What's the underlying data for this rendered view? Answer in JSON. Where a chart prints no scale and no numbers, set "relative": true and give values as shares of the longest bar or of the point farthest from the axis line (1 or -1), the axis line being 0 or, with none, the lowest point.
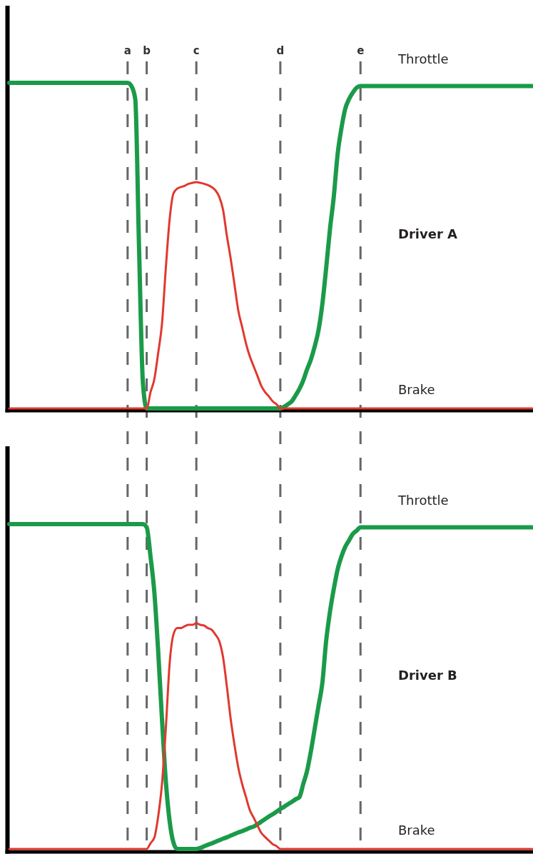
{
  "chart_data": [
    {
      "type": "line",
      "title": "Driver A",
      "relative": true,
      "grid": "x",
      "categories": [
        null,
        null,
        null,
        null,
        null,
        null,
        null,
        null,
        null,
        null,
        null,
        null,
        null,
        null,
        null,
        null,
        null,
        null,
        null,
        null,
        null,
        null,
        null,
        null,
        null,
        null,
        null,
        null,
        null,
        null,
        null,
        "a",
        null,
        null,
        null,
        null,
        "b",
        null,
        null,
        null,
        null,
        null,
        null,
        null,
        null,
        null,
        null,
        null,
        null,
        "c",
        null,
        null,
        null,
        null,
        null,
        null,
        null,
        null,
        null,
        null,
        null,
        null,
        null,
        null,
        null,
        null,
        null,
        null,
        null,
        null,
        null,
        "d",
        null,
        null,
        null,
        null,
        null,
        null,
        null,
        null,
        null,
        null,
        null,
        null,
        null,
        null,
        null,
        null,
        null,
        null,
        null,
        null,
        "e",
        null,
        null,
        null,
        null,
        null,
        null,
        null,
        null,
        null,
        null,
        null,
        null,
        null,
        null,
        null,
        null,
        null,
        null,
        null,
        null,
        null,
        null,
        null,
        null,
        null,
        null,
        null,
        null,
        null,
        null,
        null,
        null,
        null,
        null,
        null,
        null,
        null,
        null,
        null,
        null,
        null,
        null,
        null,
        null,
        null
      ],
      "series": [
        {
          "name": "Throttle",
          "color": "#1b9a4a",
          "values": [
            1,
            1,
            1,
            1,
            1,
            1,
            1,
            1,
            1,
            1,
            1,
            1,
            1,
            1,
            1,
            1,
            1,
            1,
            1,
            1,
            1,
            1,
            1,
            1,
            1,
            1,
            1,
            1,
            1,
            1,
            1,
            1,
            0.99,
            0.95,
            0.49,
            0.08,
            0,
            0,
            0,
            0,
            0,
            0,
            0,
            0,
            0,
            0,
            0,
            0,
            0,
            0,
            0,
            0,
            0,
            0,
            0,
            0,
            0,
            0,
            0,
            0,
            0,
            0,
            0,
            0,
            0,
            0,
            0,
            0,
            0,
            0,
            0,
            0,
            0.005,
            0.013,
            0.022,
            0.04,
            0.06,
            0.086,
            0.12,
            0.15,
            0.19,
            0.24,
            0.32,
            0.43,
            0.55,
            0.65,
            0.78,
            0.86,
            0.92,
            0.95,
            0.97,
            0.985,
            0.99,
            0.99,
            0.99,
            0.99,
            0.99,
            0.99,
            0.99,
            0.99,
            0.99,
            0.99,
            0.99,
            0.99,
            0.99,
            0.99,
            0.99,
            0.99,
            0.99,
            0.99,
            0.99,
            0.99,
            0.99,
            0.99,
            0.99,
            0.99,
            0.99,
            0.99,
            0.99,
            0.99,
            0.99,
            0.99,
            0.99,
            0.99,
            0.99,
            0.99,
            0.99,
            0.99,
            0.99,
            0.99,
            0.99,
            0.99,
            0.99,
            0.99,
            0.99,
            0.99,
            0.99,
            0.99
          ]
        },
        {
          "name": "Brake",
          "color": "#e0392e",
          "values": [
            0,
            0,
            0,
            0,
            0,
            0,
            0,
            0,
            0,
            0,
            0,
            0,
            0,
            0,
            0,
            0,
            0,
            0,
            0,
            0,
            0,
            0,
            0,
            0,
            0,
            0,
            0,
            0,
            0,
            0,
            0,
            0,
            0,
            0,
            0,
            0,
            0,
            0.05,
            0.09,
            0.17,
            0.26,
            0.43,
            0.58,
            0.66,
            0.675,
            0.68,
            0.684,
            0.69,
            0.693,
            0.695,
            0.693,
            0.69,
            0.686,
            0.68,
            0.67,
            0.65,
            0.61,
            0.53,
            0.46,
            0.38,
            0.3,
            0.25,
            0.2,
            0.16,
            0.13,
            0.1,
            0.07,
            0.05,
            0.037,
            0.022,
            0.013,
            0,
            0,
            0,
            0,
            0,
            0,
            0,
            0,
            0,
            0,
            0,
            0,
            0,
            0,
            0,
            0,
            0,
            0,
            0,
            0,
            0,
            0,
            0,
            0,
            0,
            0,
            0,
            0,
            0,
            0,
            0,
            0,
            0,
            0,
            0,
            0,
            0,
            0,
            0,
            0,
            0,
            0,
            0,
            0,
            0,
            0,
            0,
            0,
            0,
            0,
            0,
            0,
            0,
            0,
            0,
            0,
            0,
            0,
            0,
            0,
            0,
            0,
            0,
            0,
            0,
            0,
            0
          ]
        }
      ]
    },
    {
      "type": "line",
      "title": "Driver B",
      "relative": true,
      "categories": [
        null,
        null,
        null,
        null,
        null,
        null,
        null,
        null,
        null,
        null,
        null,
        null,
        null,
        null,
        null,
        null,
        null,
        null,
        null,
        null,
        null,
        null,
        null,
        null,
        null,
        null,
        null,
        null,
        null,
        null,
        null,
        null,
        null,
        null,
        null,
        null,
        null,
        null,
        null,
        null,
        null,
        null,
        null,
        null,
        null,
        null,
        null,
        null,
        null,
        null,
        null,
        null,
        null,
        null,
        null,
        null,
        null,
        null,
        null,
        null,
        null,
        null,
        null,
        null,
        null,
        null,
        null,
        null,
        null,
        null,
        null,
        null,
        null,
        null,
        null,
        null,
        null,
        null,
        null,
        null,
        null,
        null,
        null,
        null,
        null,
        null,
        null,
        null,
        null,
        null,
        null,
        null,
        null,
        null,
        null,
        null,
        null,
        null,
        null,
        null,
        null,
        null,
        null,
        null,
        null,
        null,
        null,
        null,
        null,
        null,
        null,
        null,
        null,
        null,
        null,
        null,
        null,
        null,
        null,
        null,
        null,
        null,
        null,
        null,
        null,
        null,
        null,
        null,
        null,
        null,
        null,
        null,
        null,
        null,
        null,
        null,
        null,
        null
      ],
      "series": [
        {
          "name": "Throttle",
          "color": "#1b9a4a",
          "values": [
            1,
            1,
            1,
            1,
            1,
            1,
            1,
            1,
            1,
            1,
            1,
            1,
            1,
            1,
            1,
            1,
            1,
            1,
            1,
            1,
            1,
            1,
            1,
            1,
            1,
            1,
            1,
            1,
            1,
            1,
            1,
            1,
            1,
            1,
            1,
            1,
            0.99,
            0.9,
            0.79,
            0.61,
            0.4,
            0.21,
            0.086,
            0.02,
            0,
            0,
            0,
            0,
            0,
            0,
            0.003,
            0.008,
            0.013,
            0.017,
            0.022,
            0.027,
            0.032,
            0.036,
            0.041,
            0.046,
            0.051,
            0.055,
            0.06,
            0.065,
            0.069,
            0.076,
            0.084,
            0.092,
            0.1,
            0.107,
            0.115,
            0.123,
            0.13,
            0.138,
            0.145,
            0.153,
            0.16,
            0.2,
            0.24,
            0.3,
            0.37,
            0.44,
            0.51,
            0.64,
            0.73,
            0.8,
            0.86,
            0.9,
            0.93,
            0.95,
            0.97,
            0.98,
            0.99,
            0.99,
            0.99,
            0.99,
            0.99,
            0.99,
            0.99,
            0.99,
            0.99,
            0.99,
            0.99,
            0.99,
            0.99,
            0.99,
            0.99,
            0.99,
            0.99,
            0.99,
            0.99,
            0.99,
            0.99,
            0.99,
            0.99,
            0.99,
            0.99,
            0.99,
            0.99,
            0.99,
            0.99,
            0.99,
            0.99,
            0.99,
            0.99,
            0.99,
            0.99,
            0.99,
            0.99,
            0.99,
            0.99,
            0.99,
            0.99,
            0.99,
            0.99,
            0.99,
            0.99,
            0.99
          ]
        },
        {
          "name": "Brake",
          "color": "#e0392e",
          "values": [
            0,
            0,
            0,
            0,
            0,
            0,
            0,
            0,
            0,
            0,
            0,
            0,
            0,
            0,
            0,
            0,
            0,
            0,
            0,
            0,
            0,
            0,
            0,
            0,
            0,
            0,
            0,
            0,
            0,
            0,
            0,
            0,
            0,
            0,
            0,
            0,
            0,
            0.018,
            0.035,
            0.1,
            0.2,
            0.37,
            0.57,
            0.66,
            0.68,
            0.68,
            0.686,
            0.69,
            0.69,
            0.695,
            0.69,
            0.688,
            0.68,
            0.675,
            0.66,
            0.64,
            0.59,
            0.5,
            0.4,
            0.32,
            0.25,
            0.2,
            0.16,
            0.12,
            0.097,
            0.073,
            0.05,
            0.037,
            0.026,
            0.015,
            0.009,
            0,
            0,
            0,
            0,
            0,
            0,
            0,
            0,
            0,
            0,
            0,
            0,
            0,
            0,
            0,
            0,
            0,
            0,
            0,
            0,
            0,
            0,
            0,
            0,
            0,
            0,
            0,
            0,
            0,
            0,
            0,
            0,
            0,
            0,
            0,
            0,
            0,
            0,
            0,
            0,
            0,
            0,
            0,
            0,
            0,
            0,
            0,
            0,
            0,
            0,
            0,
            0,
            0,
            0,
            0,
            0,
            0,
            0,
            0,
            0,
            0,
            0,
            0,
            0,
            0,
            0,
            0
          ]
        }
      ]
    }
  ]
}
